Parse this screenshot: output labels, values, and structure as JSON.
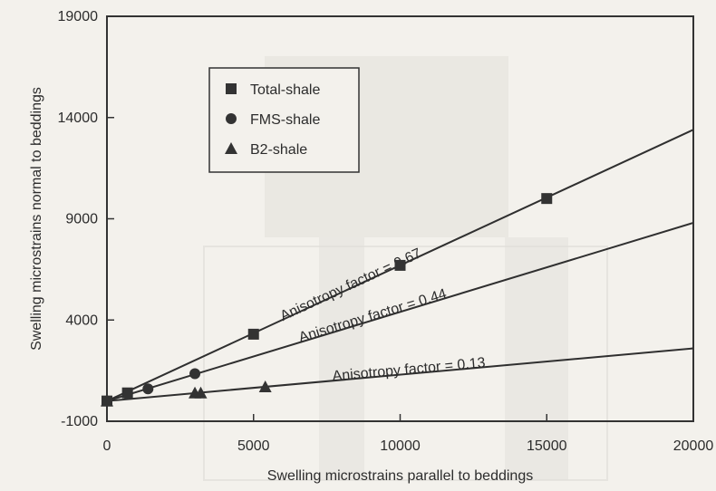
{
  "chart_data": {
    "type": "line",
    "title": "",
    "xlabel": "Swelling microstrains parallel to beddings",
    "ylabel": "Swelling microstrains normal to beddings",
    "xlim": [
      0,
      20000
    ],
    "ylim": [
      -1000,
      19000
    ],
    "x_ticks": [
      0,
      5000,
      10000,
      15000,
      20000
    ],
    "y_ticks": [
      -1000,
      4000,
      9000,
      14000,
      19000
    ],
    "grid": false,
    "legend_placement": "top-left",
    "series": [
      {
        "name": "Total-shale",
        "marker": "square",
        "points": [
          {
            "x": 0,
            "y": 0
          },
          {
            "x": 700,
            "y": 400
          },
          {
            "x": 5000,
            "y": 3300
          },
          {
            "x": 10000,
            "y": 6700
          },
          {
            "x": 15000,
            "y": 10000
          }
        ]
      },
      {
        "name": "FMS-shale",
        "marker": "circle",
        "points": [
          {
            "x": 0,
            "y": 0
          },
          {
            "x": 700,
            "y": 350
          },
          {
            "x": 1400,
            "y": 600
          },
          {
            "x": 3000,
            "y": 1350
          }
        ]
      },
      {
        "name": "B2-shale",
        "marker": "triangle",
        "points": [
          {
            "x": 0,
            "y": 0
          },
          {
            "x": 3000,
            "y": 400
          },
          {
            "x": 3200,
            "y": 400
          },
          {
            "x": 5400,
            "y": 700
          }
        ]
      }
    ],
    "fit_lines": [
      {
        "label": "Anisotropy factor = 0.67",
        "slope": 0.67,
        "x_start": 0,
        "x_end": 20000,
        "label_x": 6000,
        "label_y": 3950
      },
      {
        "label": "Anisotropy factor = 0.44",
        "slope": 0.44,
        "x_start": 0,
        "x_end": 20000,
        "label_x": 6600,
        "label_y": 2900
      },
      {
        "label": "Anisotropy factor = 0.13",
        "slope": 0.13,
        "x_start": 0,
        "x_end": 20000,
        "label_x": 7700,
        "label_y": 1000
      }
    ]
  }
}
